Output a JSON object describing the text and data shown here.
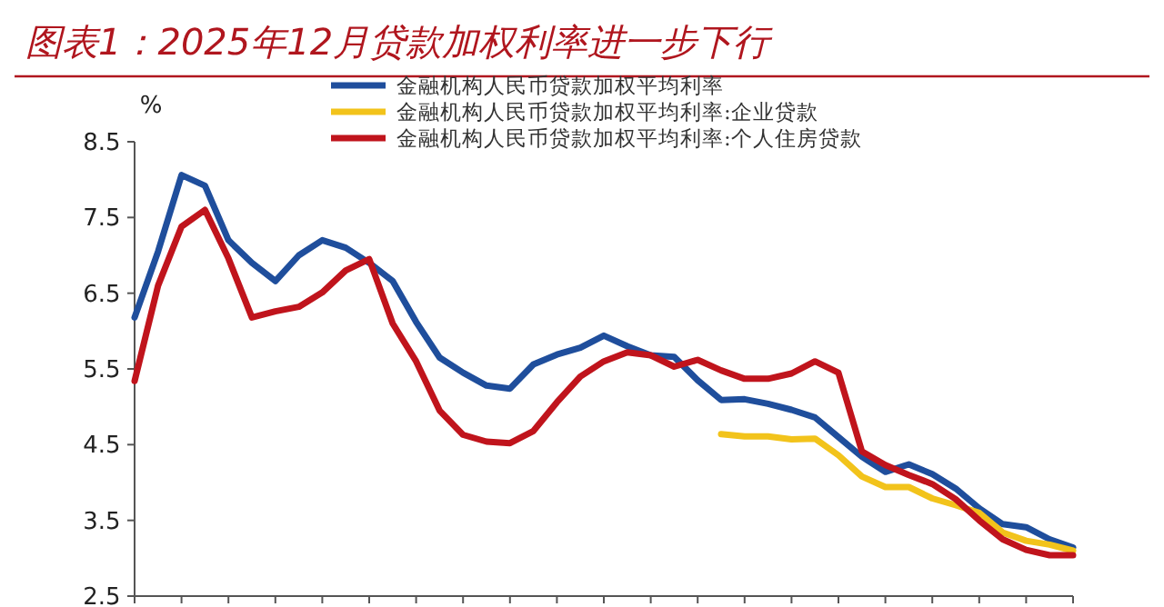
{
  "chart_data": {
    "type": "line",
    "title": "图表1：2025年12月贷款加权利率进一步下行",
    "ylabel": "%",
    "categories": [
      null,
      null,
      null,
      null,
      null,
      null,
      null,
      null,
      null,
      null,
      null,
      null,
      null,
      null,
      null,
      null,
      null,
      null,
      null,
      null,
      null,
      null,
      null,
      null,
      null,
      null,
      null,
      null,
      null,
      null,
      null,
      null,
      null,
      null,
      null,
      null,
      null,
      null,
      null,
      null,
      null
    ],
    "ylim": [
      2.5,
      8.5
    ],
    "yticks": [
      2.5,
      3.5,
      4.5,
      5.5,
      6.5,
      7.5,
      8.5
    ],
    "grid": false,
    "legend": "top",
    "marker": "none",
    "line_style": "solid",
    "series": [
      {
        "name": "金融机构人民币贷款加权平均利率",
        "color": "#1f4e9c",
        "values": [
          6.18,
          7.05,
          8.06,
          7.92,
          7.2,
          6.9,
          6.66,
          7.0,
          7.2,
          7.1,
          6.9,
          6.66,
          6.12,
          5.65,
          5.45,
          5.28,
          5.24,
          5.56,
          5.69,
          5.78,
          5.94,
          5.8,
          5.68,
          5.66,
          5.35,
          5.09,
          5.1,
          5.04,
          4.96,
          4.86,
          4.6,
          4.34,
          4.14,
          4.24,
          4.11,
          3.92,
          3.66,
          3.45,
          3.41,
          3.25,
          3.14
        ]
      },
      {
        "name": "金融机构人民币贷款加权平均利率:企业贷款",
        "color": "#f2c31b",
        "values": [
          null,
          null,
          null,
          null,
          null,
          null,
          null,
          null,
          null,
          null,
          null,
          null,
          null,
          null,
          null,
          null,
          null,
          null,
          null,
          null,
          null,
          null,
          null,
          null,
          null,
          4.64,
          4.61,
          4.61,
          4.57,
          4.58,
          4.36,
          4.08,
          3.94,
          3.94,
          3.79,
          3.7,
          3.6,
          3.34,
          3.23,
          3.18,
          3.1
        ]
      },
      {
        "name": "金融机构人民币贷款加权平均利率:个人住房贷款",
        "color": "#c0141c",
        "values": [
          5.34,
          6.6,
          7.38,
          7.6,
          6.96,
          6.18,
          6.26,
          6.32,
          6.51,
          6.8,
          6.95,
          6.1,
          5.6,
          4.95,
          4.63,
          4.54,
          4.52,
          4.68,
          5.06,
          5.4,
          5.6,
          5.72,
          5.68,
          5.53,
          5.62,
          5.48,
          5.37,
          5.37,
          5.44,
          5.6,
          5.45,
          4.41,
          4.23,
          4.1,
          3.98,
          3.78,
          3.5,
          3.25,
          3.11,
          3.04,
          3.04
        ]
      }
    ]
  }
}
